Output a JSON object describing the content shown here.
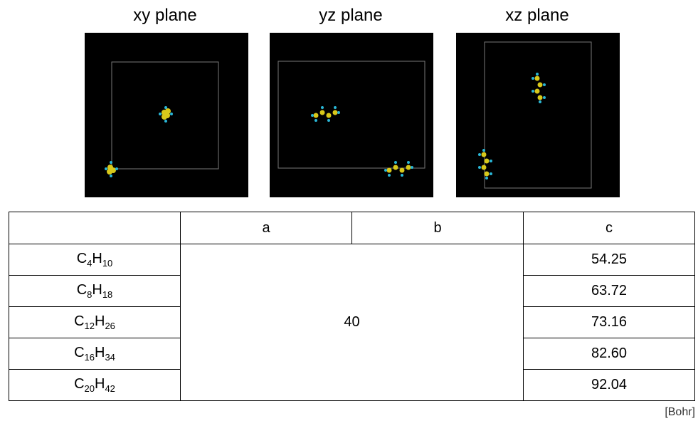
{
  "panels": [
    {
      "title": "xy plane"
    },
    {
      "title": "yz plane"
    },
    {
      "title": "xz plane"
    }
  ],
  "table": {
    "header": [
      "a",
      "b",
      "c"
    ],
    "shared_value": 40,
    "rows": [
      {
        "formula": [
          "C",
          "4",
          "H",
          "10"
        ],
        "c": "54.25"
      },
      {
        "formula": [
          "C",
          "8",
          "H",
          "18"
        ],
        "c": "63.72"
      },
      {
        "formula": [
          "C",
          "12",
          "H",
          "26"
        ],
        "c": "73.16"
      },
      {
        "formula": [
          "C",
          "16",
          "H",
          "34"
        ],
        "c": "82.60"
      },
      {
        "formula": [
          "C",
          "20",
          "H",
          "42"
        ],
        "c": "92.04"
      }
    ]
  },
  "unit": "[Bohr]"
}
